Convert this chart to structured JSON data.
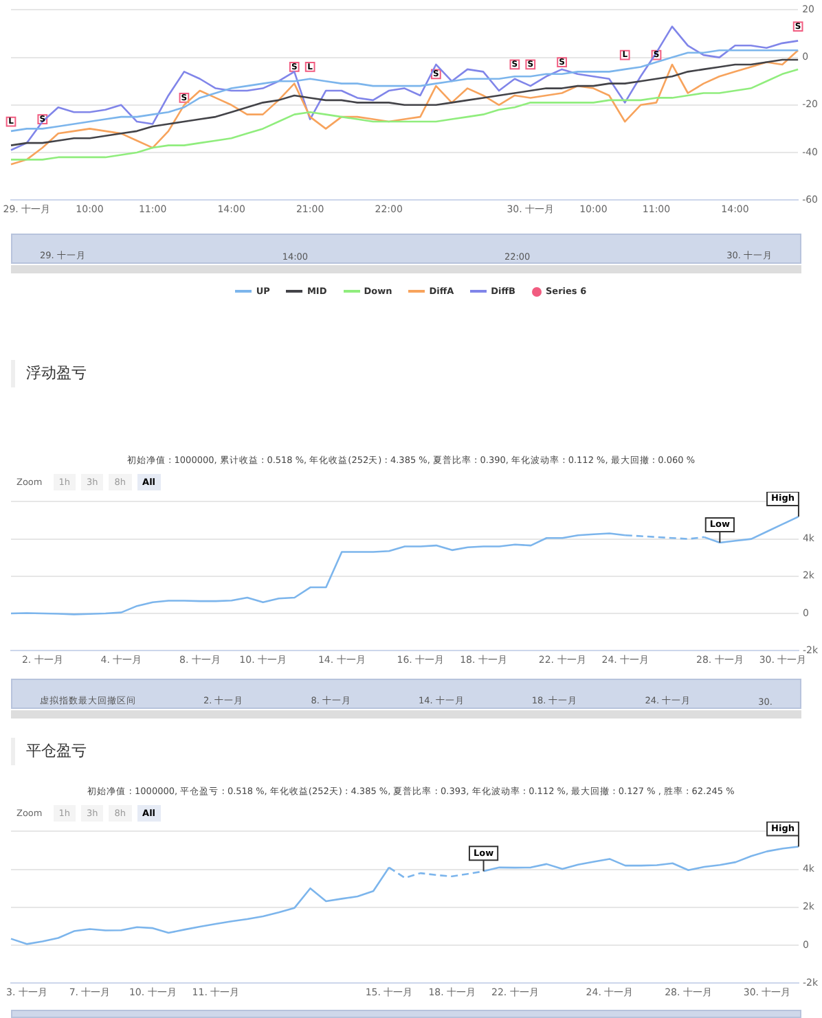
{
  "chart_data": [
    {
      "type": "line",
      "legend": "bottom",
      "grid": "y",
      "marker": "none",
      "ylim": [
        -60,
        20
      ],
      "yticks": [
        -60,
        -40,
        -20,
        0,
        20
      ],
      "categories": [
        null,
        "29. 十一月",
        null,
        null,
        null,
        "10:00",
        null,
        null,
        null,
        "11:00",
        null,
        null,
        null,
        null,
        "14:00",
        null,
        null,
        null,
        null,
        "21:00",
        null,
        null,
        null,
        null,
        "22:00",
        null,
        null,
        null,
        null,
        null,
        null,
        null,
        null,
        "30. 十一月",
        null,
        null,
        null,
        "10:00",
        null,
        null,
        null,
        "11:00",
        null,
        null,
        null,
        null,
        "14:00",
        null,
        null,
        null,
        null
      ],
      "annotations": [
        "29. 十一月",
        "14:00",
        "22:00",
        "30. 十一月"
      ],
      "series": [
        {
          "name": "UP",
          "color": "#7cb5ec",
          "values": [
            -31,
            -30,
            -30,
            -29,
            -28,
            -27,
            -26,
            -25,
            -25,
            -24,
            -23,
            -21,
            -17,
            -15,
            -13,
            -12,
            -11,
            -10,
            -10,
            -9,
            -10,
            -11,
            -11,
            -12,
            -12,
            -12,
            -12,
            -11,
            -10,
            -9,
            -9,
            -9,
            -8,
            -8,
            -7,
            -7,
            -6,
            -6,
            -6,
            -5,
            -4,
            -2,
            0,
            2,
            2,
            3,
            3,
            3,
            3,
            3,
            3
          ]
        },
        {
          "name": "MID",
          "color": "#434348",
          "values": [
            -37,
            -36,
            -36,
            -35,
            -34,
            -34,
            -33,
            -32,
            -31,
            -29,
            -28,
            -27,
            -26,
            -25,
            -23,
            -21,
            -19,
            -18,
            -16,
            -17,
            -18,
            -18,
            -19,
            -19,
            -19,
            -20,
            -20,
            -20,
            -19,
            -18,
            -17,
            -16,
            -15,
            -14,
            -13,
            -13,
            -12,
            -12,
            -11,
            -11,
            -10,
            -9,
            -8,
            -6,
            -5,
            -4,
            -3,
            -3,
            -2,
            -1,
            -1
          ]
        },
        {
          "name": "Down",
          "color": "#90ed7d",
          "values": [
            -43,
            -43,
            -43,
            -42,
            -42,
            -42,
            -42,
            -41,
            -40,
            -38,
            -37,
            -37,
            -36,
            -35,
            -34,
            -32,
            -30,
            -27,
            -24,
            -23,
            -24,
            -25,
            -26,
            -27,
            -27,
            -27,
            -27,
            -27,
            -26,
            -25,
            -24,
            -22,
            -21,
            -19,
            -19,
            -19,
            -19,
            -19,
            -18,
            -18,
            -18,
            -17,
            -17,
            -16,
            -15,
            -15,
            -14,
            -13,
            -10,
            -7,
            -5
          ]
        },
        {
          "name": "DiffA",
          "color": "#f7a35c",
          "values": [
            -45,
            -43,
            -38,
            -32,
            -31,
            -30,
            -31,
            -32,
            -35,
            -38,
            -31,
            -20,
            -14,
            -17,
            -20,
            -24,
            -24,
            -18,
            -11,
            -25,
            -30,
            -25,
            -25,
            -26,
            -27,
            -26,
            -25,
            -12,
            -19,
            -13,
            -16,
            -20,
            -16,
            -17,
            -16,
            -15,
            -12,
            -13,
            -16,
            -27,
            -20,
            -19,
            -3,
            -15,
            -11,
            -8,
            -6,
            -4,
            -2,
            -3,
            3
          ]
        },
        {
          "name": "DiffB",
          "color": "#8085e9",
          "values": [
            -39,
            -36,
            -27,
            -21,
            -23,
            -23,
            -22,
            -20,
            -27,
            -28,
            -16,
            -6,
            -9,
            -13,
            -14,
            -14,
            -13,
            -10,
            -6,
            -26,
            -14,
            -14,
            -17,
            -18,
            -14,
            -13,
            -16,
            -3,
            -10,
            -5,
            -6,
            -14,
            -9,
            -12,
            -8,
            -5,
            -7,
            -8,
            -9,
            -19,
            -8,
            2,
            13,
            5,
            1,
            0,
            5,
            5,
            4,
            6,
            7
          ]
        },
        {
          "name": "Series 6",
          "type": "scatter",
          "marker": "square",
          "color": "#f15c80",
          "values": [
            -27,
            null,
            -26,
            null,
            null,
            null,
            null,
            null,
            null,
            null,
            null,
            -17,
            null,
            null,
            null,
            null,
            null,
            null,
            -4,
            -4,
            null,
            null,
            null,
            null,
            null,
            null,
            null,
            -7,
            null,
            null,
            null,
            null,
            -3,
            -3,
            null,
            -2,
            null,
            null,
            null,
            1,
            null,
            1,
            null,
            null,
            null,
            null,
            null,
            null,
            null,
            null,
            13
          ],
          "value_labels": [
            "L",
            null,
            "S",
            null,
            null,
            null,
            null,
            null,
            null,
            null,
            null,
            "S",
            null,
            null,
            null,
            null,
            null,
            null,
            "S",
            "L",
            null,
            null,
            null,
            null,
            null,
            null,
            null,
            "S",
            null,
            null,
            null,
            null,
            "S",
            "S",
            null,
            "S",
            null,
            null,
            null,
            "L",
            null,
            "S",
            null,
            null,
            null,
            null,
            null,
            null,
            null,
            null,
            "S"
          ]
        }
      ]
    },
    {
      "type": "line",
      "title": "浮动盈亏",
      "subtitle": "初始净值 : 1000000, 累计收益 : 0.518 %, 年化收益(252天) : 4.385 %, 夏普比率 : 0.390, 年化波动率 : 0.112 %, 最大回撤 : 0.060 %",
      "grid": "y",
      "marker": "none",
      "ylim": [
        -2000,
        6000
      ],
      "yticks": [
        {
          "value": -2000,
          "label": "-2k"
        },
        0,
        {
          "value": 2000,
          "label": "2k"
        },
        {
          "value": 4000,
          "label": "4k"
        },
        {
          "value": 6000,
          "label": null
        }
      ],
      "categories": [
        null,
        null,
        "2. 十一月",
        null,
        null,
        null,
        null,
        "4. 十一月",
        null,
        null,
        null,
        null,
        "8. 十一月",
        null,
        null,
        null,
        "10. 十一月",
        null,
        null,
        null,
        null,
        "14. 十一月",
        null,
        null,
        null,
        null,
        "16. 十一月",
        null,
        null,
        null,
        "18. 十一月",
        null,
        null,
        null,
        null,
        "22. 十一月",
        null,
        null,
        null,
        "24. 十一月",
        null,
        null,
        null,
        null,
        null,
        "28. 十一月",
        null,
        null,
        null,
        "30. 十一月",
        null
      ],
      "annotations": [
        "Zoom",
        "1h",
        "3h",
        "8h",
        "All",
        "虚拟指数最大回撤区间",
        "2. 十一月",
        "8. 十一月",
        "14. 十一月",
        "18. 十一月",
        "24. 十一月",
        "30."
      ],
      "series": [
        {
          "color": "#7cb5ec",
          "values": [
            0,
            20,
            0,
            -20,
            -50,
            -30,
            0,
            50,
            400,
            600,
            680,
            680,
            660,
            660,
            690,
            850,
            600,
            800,
            850,
            1400,
            1400,
            3300,
            3300,
            3300,
            3350,
            3600,
            3600,
            3650,
            3400,
            3550,
            3600,
            3600,
            3700,
            3650,
            4050,
            4050,
            4200,
            4250,
            4300,
            4200,
            null,
            null,
            null,
            null,
            null,
            null,
            null,
            null,
            null,
            null,
            null
          ]
        },
        {
          "color": "#7cb5ec",
          "line_style": "dashed",
          "values": [
            null,
            null,
            null,
            null,
            null,
            null,
            null,
            null,
            null,
            null,
            null,
            null,
            null,
            null,
            null,
            null,
            null,
            null,
            null,
            null,
            null,
            null,
            null,
            null,
            null,
            null,
            null,
            null,
            null,
            null,
            null,
            null,
            null,
            null,
            null,
            null,
            null,
            null,
            null,
            4200,
            4150,
            4100,
            4050,
            4000,
            4100,
            null,
            null,
            null,
            null,
            null,
            null
          ]
        },
        {
          "color": "#7cb5ec",
          "values": [
            null,
            null,
            null,
            null,
            null,
            null,
            null,
            null,
            null,
            null,
            null,
            null,
            null,
            null,
            null,
            null,
            null,
            null,
            null,
            null,
            null,
            null,
            null,
            null,
            null,
            null,
            null,
            null,
            null,
            null,
            null,
            null,
            null,
            null,
            null,
            null,
            null,
            null,
            null,
            null,
            null,
            null,
            null,
            null,
            4100,
            3800,
            3900,
            4000,
            4400,
            4800,
            5200
          ],
          "value_labels": [
            null,
            null,
            null,
            null,
            null,
            null,
            null,
            null,
            null,
            null,
            null,
            null,
            null,
            null,
            null,
            null,
            null,
            null,
            null,
            null,
            null,
            null,
            null,
            null,
            null,
            null,
            null,
            null,
            null,
            null,
            null,
            null,
            null,
            null,
            null,
            null,
            null,
            null,
            null,
            null,
            null,
            null,
            null,
            null,
            null,
            "Low",
            null,
            null,
            null,
            null,
            "High"
          ]
        }
      ]
    },
    {
      "type": "line",
      "title": "平仓盈亏",
      "subtitle": "初始净值 : 1000000, 平仓盈亏 : 0.518 %, 年化收益(252天) : 4.385 %, 夏普比率 : 0.393, 年化波动率 : 0.112 %, 最大回撤 : 0.127 % , 胜率 : 62.245 %",
      "grid": "y",
      "marker": "none",
      "ylim": [
        -2000,
        6000
      ],
      "yticks": [
        {
          "value": -2000,
          "label": "-2k"
        },
        0,
        {
          "value": 2000,
          "label": "2k"
        },
        {
          "value": 4000,
          "label": "4k"
        },
        {
          "value": 6000,
          "label": null
        }
      ],
      "categories": [
        null,
        "3. 十一月",
        null,
        null,
        null,
        "7. 十一月",
        null,
        null,
        null,
        "10. 十一月",
        null,
        null,
        null,
        "11. 十一月",
        null,
        null,
        null,
        null,
        null,
        null,
        null,
        null,
        null,
        null,
        "15. 十一月",
        null,
        null,
        null,
        "18. 十一月",
        null,
        null,
        null,
        "22. 十一月",
        null,
        null,
        null,
        null,
        null,
        "24. 十一月",
        null,
        null,
        null,
        null,
        "28. 十一月",
        null,
        null,
        null,
        null,
        "30. 十一月",
        null,
        null
      ],
      "annotations": [
        "Zoom",
        "1h",
        "3h",
        "8h",
        "All"
      ],
      "series": [
        {
          "color": "#7cb5ec",
          "values": [
            340,
            60,
            200,
            380,
            740,
            850,
            780,
            790,
            950,
            900,
            650,
            820,
            980,
            1120,
            1260,
            1380,
            1520,
            1730,
            1970,
            3000,
            2320,
            2450,
            2570,
            2850,
            4100,
            null,
            null,
            null,
            null,
            null,
            null,
            null,
            null,
            null,
            null,
            null,
            null,
            null,
            null,
            null,
            null,
            null,
            null,
            null,
            null,
            null,
            null,
            null,
            null,
            null,
            null
          ]
        },
        {
          "color": "#7cb5ec",
          "line_style": "dashed",
          "values": [
            null,
            null,
            null,
            null,
            null,
            null,
            null,
            null,
            null,
            null,
            null,
            null,
            null,
            null,
            null,
            null,
            null,
            null,
            null,
            null,
            null,
            null,
            null,
            null,
            4100,
            3550,
            3800,
            3700,
            3630,
            3760,
            3900,
            null,
            null,
            null,
            null,
            null,
            null,
            null,
            null,
            null,
            null,
            null,
            null,
            null,
            null,
            null,
            null,
            null,
            null,
            null,
            null
          ]
        },
        {
          "color": "#7cb5ec",
          "values": [
            null,
            null,
            null,
            null,
            null,
            null,
            null,
            null,
            null,
            null,
            null,
            null,
            null,
            null,
            null,
            null,
            null,
            null,
            null,
            null,
            null,
            null,
            null,
            null,
            null,
            null,
            null,
            null,
            null,
            null,
            3900,
            4100,
            4090,
            4100,
            4280,
            4020,
            4250,
            4400,
            4550,
            4200,
            4200,
            4220,
            4320,
            3960,
            4130,
            4230,
            4380,
            4700,
            4950,
            5100,
            5200
          ],
          "value_labels": [
            null,
            null,
            null,
            null,
            null,
            null,
            null,
            null,
            null,
            null,
            null,
            null,
            null,
            null,
            null,
            null,
            null,
            null,
            null,
            null,
            null,
            null,
            null,
            null,
            null,
            null,
            null,
            null,
            null,
            null,
            "Low",
            null,
            null,
            null,
            null,
            null,
            null,
            null,
            null,
            null,
            null,
            null,
            null,
            null,
            null,
            null,
            null,
            null,
            null,
            null,
            "High"
          ]
        }
      ]
    }
  ]
}
